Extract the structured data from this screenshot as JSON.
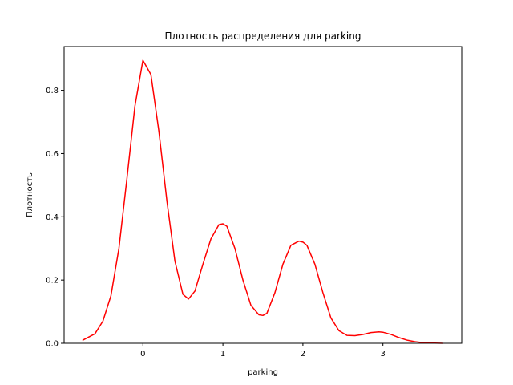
{
  "chart_data": {
    "type": "line",
    "title": "Плотность распределения для parking",
    "xlabel": "parking",
    "ylabel": "Плотность",
    "xlim": [
      -0.985,
      3.985
    ],
    "ylim": [
      0.0,
      0.9385
    ],
    "x_ticks": [
      0,
      1,
      2,
      3
    ],
    "x_tick_labels": [
      "0",
      "1",
      "2",
      "3"
    ],
    "y_ticks": [
      0.0,
      0.2,
      0.4,
      0.6,
      0.8
    ],
    "y_tick_labels": [
      "0.0",
      "0.2",
      "0.4",
      "0.6",
      "0.8"
    ],
    "grid": false,
    "legend": "none",
    "series": [
      {
        "color": "#ff0000",
        "x": [
          -0.75,
          -0.6,
          -0.5,
          -0.4,
          -0.3,
          -0.2,
          -0.1,
          0.0,
          0.1,
          0.2,
          0.3,
          0.4,
          0.5,
          0.57,
          0.65,
          0.75,
          0.85,
          0.95,
          1.0,
          1.05,
          1.15,
          1.25,
          1.35,
          1.45,
          1.5,
          1.55,
          1.65,
          1.75,
          1.85,
          1.95,
          2.0,
          2.05,
          2.15,
          2.25,
          2.35,
          2.45,
          2.55,
          2.65,
          2.75,
          2.85,
          2.95,
          3.0,
          3.1,
          3.2,
          3.3,
          3.4,
          3.5,
          3.6,
          3.75
        ],
        "y": [
          0.01,
          0.03,
          0.07,
          0.15,
          0.3,
          0.52,
          0.75,
          0.895,
          0.85,
          0.67,
          0.45,
          0.26,
          0.155,
          0.14,
          0.165,
          0.25,
          0.33,
          0.375,
          0.378,
          0.37,
          0.3,
          0.2,
          0.12,
          0.09,
          0.088,
          0.095,
          0.16,
          0.25,
          0.31,
          0.323,
          0.32,
          0.31,
          0.25,
          0.16,
          0.08,
          0.04,
          0.025,
          0.024,
          0.028,
          0.034,
          0.036,
          0.035,
          0.028,
          0.018,
          0.01,
          0.005,
          0.002,
          0.001,
          0.0
        ]
      }
    ]
  }
}
